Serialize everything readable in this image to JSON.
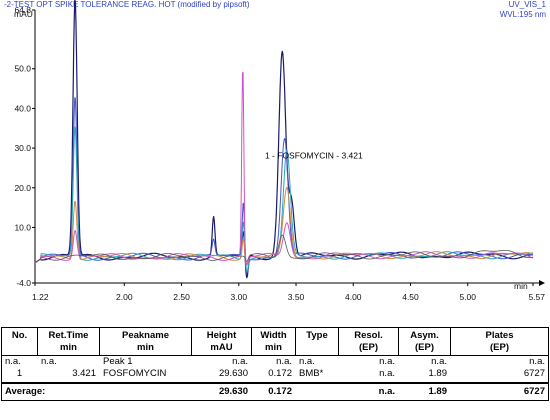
{
  "chart_data": {
    "type": "line",
    "title": "UV_VIS_1",
    "header_text": "-2-TEST OPT SPIKE TOLERANCE REAG. HOT (modified by pipsoft)",
    "wavelength": "WVL:195 nm",
    "ylabel": "mAU",
    "xlabel": "min",
    "xlim": [
      1.22,
      5.57
    ],
    "ylim": [
      -4.0,
      64.8
    ],
    "x_ticks": [
      {
        "v": 1.22,
        "label": "1.22"
      },
      {
        "v": 2.0,
        "label": "2.00"
      },
      {
        "v": 2.5,
        "label": "2.50"
      },
      {
        "v": 3.0,
        "label": "3.00"
      },
      {
        "v": 3.5,
        "label": "3.50"
      },
      {
        "v": 4.0,
        "label": "4.00"
      },
      {
        "v": 4.5,
        "label": "4.50"
      },
      {
        "v": 5.0,
        "label": "5.00"
      },
      {
        "v": 5.57,
        "label": "5.57"
      }
    ],
    "y_ticks": [
      {
        "v": 64.8,
        "label": "64.8"
      },
      {
        "v": 50.0,
        "label": "50.0"
      },
      {
        "v": 40.0,
        "label": "40.0"
      },
      {
        "v": 30.0,
        "label": "30.0"
      },
      {
        "v": 20.0,
        "label": "20.0"
      },
      {
        "v": 10.0,
        "label": "10.0"
      },
      {
        "v": -4.0,
        "label": "-4.0"
      }
    ],
    "grid": false,
    "annotations": [
      {
        "text": "1 - FOSFOMYCIN - 3.421",
        "x": 3.421,
        "y": 29.63
      }
    ],
    "baseline_y": 2.6,
    "series": [
      {
        "color": "#1a1a6e",
        "width": 1.2,
        "peaks": [
          {
            "x": 1.57,
            "h": 64.8,
            "w": 0.018
          },
          {
            "x": 2.78,
            "h": 10.0,
            "w": 0.012
          },
          {
            "x": 3.04,
            "h": 6.0,
            "w": 0.01
          },
          {
            "x": 3.38,
            "h": 52.0,
            "w": 0.03
          },
          {
            "x": 3.46,
            "h": 14.0,
            "w": 0.025
          }
        ],
        "dip": {
          "x": 3.07,
          "d": -6.0
        }
      },
      {
        "color": "#4455cc",
        "width": 1.0,
        "peaks": [
          {
            "x": 1.57,
            "h": 40.0,
            "w": 0.016
          },
          {
            "x": 2.78,
            "h": 4.0,
            "w": 0.012
          },
          {
            "x": 3.04,
            "h": 14.0,
            "w": 0.01
          },
          {
            "x": 3.4,
            "h": 30.0,
            "w": 0.03
          }
        ],
        "dip": {
          "x": 3.07,
          "d": -4.0
        }
      },
      {
        "color": "#2aa7b8",
        "width": 1.0,
        "peaks": [
          {
            "x": 1.57,
            "h": 33.0,
            "w": 0.016
          },
          {
            "x": 3.04,
            "h": 10.0,
            "w": 0.01
          },
          {
            "x": 3.42,
            "h": 26.0,
            "w": 0.03
          }
        ],
        "dip": {
          "x": 3.07,
          "d": -3.0
        }
      },
      {
        "color": "#d28a3c",
        "width": 1.0,
        "peaks": [
          {
            "x": 1.57,
            "h": 15.0,
            "w": 0.016
          },
          {
            "x": 3.04,
            "h": 5.0,
            "w": 0.01
          },
          {
            "x": 3.42,
            "h": 17.0,
            "w": 0.03
          }
        ],
        "dip": {
          "x": 3.07,
          "d": -2.0
        }
      },
      {
        "color": "#cc55cc",
        "width": 1.0,
        "peaks": [
          {
            "x": 1.57,
            "h": 7.0,
            "w": 0.016
          },
          {
            "x": 3.035,
            "h": 48.0,
            "w": 0.009
          },
          {
            "x": 3.42,
            "h": 9.0,
            "w": 0.03
          }
        ],
        "dip": {
          "x": 3.07,
          "d": -2.0
        }
      },
      {
        "color": "#555555",
        "width": 0.8,
        "peaks": [
          {
            "x": 3.38,
            "h": 6.0,
            "w": 0.03
          },
          {
            "x": 5.3,
            "h": 0.8,
            "w": 0.15
          }
        ],
        "dip": {
          "x": 3.07,
          "d": -1.5
        }
      }
    ]
  },
  "table": {
    "headers": [
      {
        "line1": "No.",
        "line2": ""
      },
      {
        "line1": "Ret.Time",
        "line2": "min"
      },
      {
        "line1": "Peakname",
        "line2": "min"
      },
      {
        "line1": "Height",
        "line2": "mAU"
      },
      {
        "line1": "Width",
        "line2": "min"
      },
      {
        "line1": "Type",
        "line2": ""
      },
      {
        "line1": "Resol.",
        "line2": "(EP)"
      },
      {
        "line1": "Asym.",
        "line2": "(EP)"
      },
      {
        "line1": "Plates",
        "line2": "(EP)"
      }
    ],
    "rows": [
      [
        "n.a.",
        "n.a.",
        "Peak 1",
        "n.a.",
        "n.a.",
        "n.a.",
        "n.a.",
        "n.a.",
        "n.a."
      ],
      [
        "1",
        "3.421",
        "FOSFOMYCIN",
        "29.630",
        "0.172",
        "BMB*",
        "n.a.",
        "1.89",
        "6727"
      ]
    ],
    "average": {
      "label": "Average:",
      "height": "29.630",
      "width": "0.172",
      "resol": "n.a.",
      "asym": "1.89",
      "plates": "6727"
    }
  }
}
